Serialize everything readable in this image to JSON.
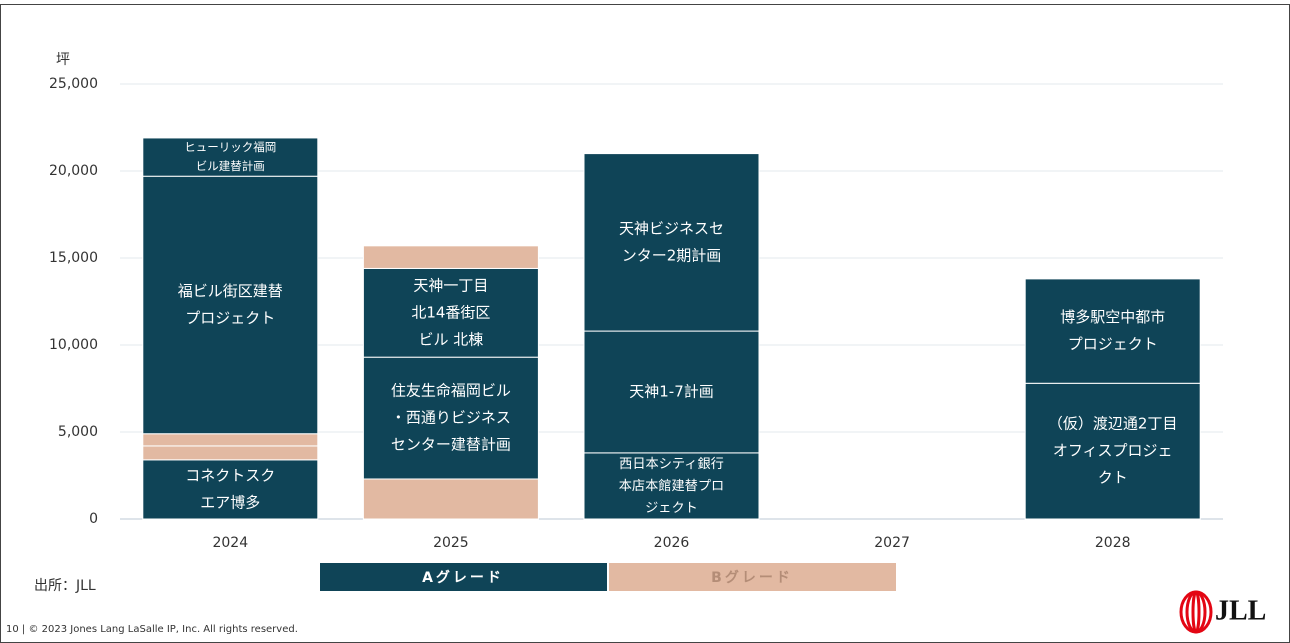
{
  "chart_data": {
    "type": "stacked-bar",
    "y_unit": "坪",
    "categories": [
      "2024",
      "2025",
      "2026",
      "2027",
      "2028"
    ],
    "series": [
      {
        "name": "Aグレード",
        "color": "#0f4457",
        "text_color": "#ffffff"
      },
      {
        "name": "Bグレード",
        "color": "#e2b9a2",
        "text_color": "#b98e78"
      }
    ],
    "stacks": [
      [
        {
          "grade": "Aグレード",
          "label": [
            "コネクトスク",
            "エア博多"
          ],
          "value": 3400
        },
        {
          "grade": "Bグレード",
          "value": 800
        },
        {
          "grade": "Bグレード",
          "value": 700
        },
        {
          "grade": "Aグレード",
          "label": [
            "福ビル街区建替",
            "プロジェクト"
          ],
          "value": 14800
        },
        {
          "grade": "Aグレード",
          "label": [
            "ヒューリック福岡",
            "ビル建替計画"
          ],
          "value": 2200
        }
      ],
      [
        {
          "grade": "Bグレード",
          "value": 2300
        },
        {
          "grade": "Aグレード",
          "label": [
            "住友生命福岡ビル",
            "・西通りビジネス",
            "センター建替計画"
          ],
          "value": 7000
        },
        {
          "grade": "Aグレード",
          "label": [
            "天神一丁目",
            "北14番街区",
            "ビル 北棟"
          ],
          "value": 5100
        },
        {
          "grade": "Bグレード",
          "value": 1300
        }
      ],
      [
        {
          "grade": "Aグレード",
          "label": [
            "西日本シティ銀行",
            "本店本館建替プロ",
            "ジェクト"
          ],
          "value": 3800
        },
        {
          "grade": "Aグレード",
          "label": [
            "天神1-7計画"
          ],
          "value": 7000
        },
        {
          "grade": "Aグレード",
          "label": [
            "天神ビジネスセ",
            "ンター2期計画"
          ],
          "value": 10200
        }
      ],
      [],
      [
        {
          "grade": "Aグレード",
          "label": [
            "（仮）渡辺通2丁目",
            "オフィスプロジェ",
            "クト"
          ],
          "value": 7800
        },
        {
          "grade": "Aグレード",
          "label": [
            "博多駅空中都市",
            "プロジェクト"
          ],
          "value": 6000
        }
      ]
    ],
    "ylim": [
      0,
      25000
    ],
    "yticks": [
      0,
      {
        "value": 5000,
        "label": "5,000"
      },
      {
        "value": 10000,
        "label": "10,000"
      },
      {
        "value": 15000,
        "label": "15,000"
      },
      {
        "value": 20000,
        "label": "20,000"
      },
      {
        "value": 25000,
        "label": "25,000"
      }
    ],
    "grid": true
  },
  "source": "出所：JLL",
  "footer": "10 | © 2023 Jones Lang LaSalle IP, Inc. All rights reserved.",
  "logo": "JLL"
}
